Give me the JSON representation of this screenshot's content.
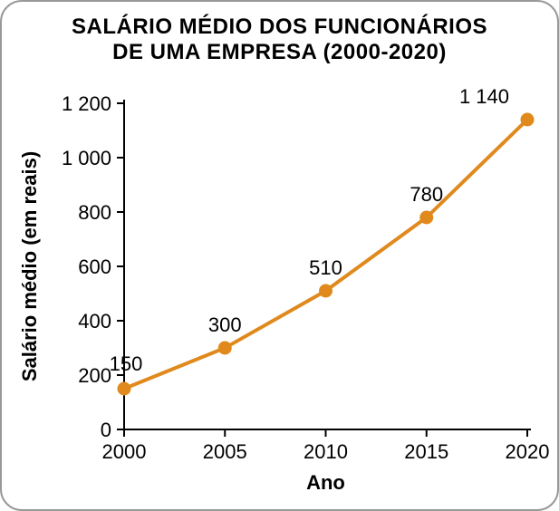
{
  "card": {
    "border_color": "#999999",
    "border_radius": 24,
    "background": "#ffffff"
  },
  "title": {
    "line1": "SALÁRIO MÉDIO DOS FUNCIONÁRIOS",
    "line2": "DE UMA EMPRESA (2000-2020)",
    "fontsize": 24,
    "color": "#000000",
    "weight": "900"
  },
  "chart": {
    "type": "line",
    "x": {
      "label": "Ano",
      "label_fontsize": 22,
      "ticks": [
        2000,
        2005,
        2010,
        2015,
        2020
      ],
      "tick_labels": [
        "2000",
        "2005",
        "2010",
        "2015",
        "2020"
      ],
      "tick_fontsize": 22,
      "xlim": [
        2000,
        2020
      ]
    },
    "y": {
      "label": "Salário médio (em reais)",
      "label_fontsize": 22,
      "ticks": [
        0,
        200,
        400,
        600,
        800,
        1000,
        1200
      ],
      "tick_labels": [
        "0",
        "200",
        "400",
        "600",
        "800",
        "1 000",
        "1 200"
      ],
      "tick_fontsize": 22,
      "ylim": [
        0,
        1200
      ]
    },
    "series": {
      "values": [
        150,
        300,
        510,
        780,
        1140
      ],
      "point_labels": [
        "150",
        "300",
        "510",
        "780",
        "1 140"
      ],
      "label_fontsize": 22,
      "line_color": "#e08a1e",
      "line_width": 4,
      "marker_fill": "#e08a1e",
      "marker_stroke": "#e08a1e",
      "marker_radius": 7
    },
    "background": "#ffffff",
    "axis_color": "#000000",
    "tick_len": 8
  }
}
